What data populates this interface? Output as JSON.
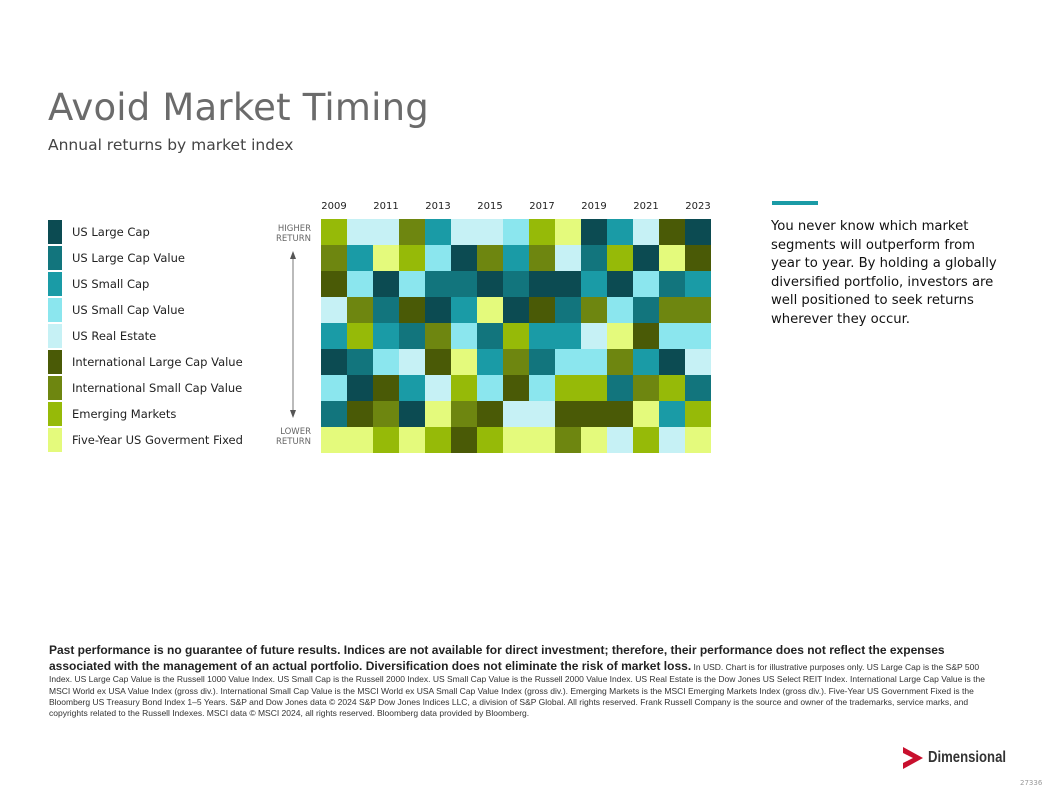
{
  "title": "Avoid Market Timing",
  "subtitle": "Annual returns by market index",
  "callout": "You never know which market segments will outperform from year to year. By holding a globally diversified portfolio, investors are well positioned to seek returns wherever they occur.",
  "higher_label": "HIGHER RETURN",
  "lower_label": "LOWER RETURN",
  "disclaimer_bold": "Past performance is no guarantee of future results. Indices are not available for direct investment; therefore, their performance does not reflect the expenses associated with the management of an actual portfolio. Diversification does not eliminate the risk of market loss.",
  "disclaimer_text": "In USD. Chart is for illustrative purposes only. US Large Cap is the S&P 500 Index. US Large Cap Value is the Russell 1000 Value Index. US Small Cap is the Russell 2000 Index. US Small Cap Value is the Russell 2000 Value Index. US Real Estate is the Dow Jones US Select REIT Index. International Large Cap Value is the MSCI World ex USA Value Index (gross div.). International Small Cap Value is the MSCI World ex USA Small Cap Value Index (gross div.). Emerging Markets is the MSCI Emerging Markets Index (gross div.). Five-Year US Government Fixed is the Bloomberg US Treasury Bond Index 1–5 Years. S&P and Dow Jones data © 2024 S&P Dow Jones Indices LLC, a division of S&P Global. All rights reserved. Frank Russell Company is the source and owner of the trademarks, service marks, and copyrights related to the Russell Indexes. MSCI data © MSCI 2024, all rights reserved. Bloomberg data provided by Bloomberg.",
  "logo_text": "Dimensional",
  "code": "27336",
  "colors": {
    "accent": "#1a9ba6",
    "logo_red": "#c8102e"
  },
  "chart_data": {
    "type": "heatmap",
    "description_axis": "rows ranked from higher return (top) to lower return (bottom)",
    "years": [
      "2009",
      "2010",
      "2011",
      "2012",
      "2013",
      "2014",
      "2015",
      "2016",
      "2017",
      "2018",
      "2019",
      "2020",
      "2021",
      "2022",
      "2023"
    ],
    "year_labels_shown": [
      "2009",
      "2011",
      "2013",
      "2015",
      "2017",
      "2019",
      "2021",
      "2023"
    ],
    "categories": [
      {
        "name": "US Large Cap",
        "color": "#0c4b52"
      },
      {
        "name": "US Large Cap Value",
        "color": "#12757d"
      },
      {
        "name": "US Small Cap",
        "color": "#1a9ba6"
      },
      {
        "name": "US Small Cap Value",
        "color": "#8be6ee"
      },
      {
        "name": "US Real Estate",
        "color": "#c6f1f5"
      },
      {
        "name": "International Large Cap Value",
        "color": "#4a5a06"
      },
      {
        "name": "International Small Cap Value",
        "color": "#6e8610"
      },
      {
        "name": "Emerging Markets",
        "color": "#96ba08"
      },
      {
        "name": "Five-Year US Goverment Fixed",
        "color": "#e4fa7c"
      }
    ],
    "rankings": [
      [
        7,
        4,
        4,
        6,
        2,
        4,
        4,
        3,
        7,
        8,
        0,
        2,
        4,
        5,
        0
      ],
      [
        6,
        2,
        8,
        7,
        3,
        0,
        6,
        2,
        6,
        4,
        1,
        7,
        0,
        8,
        5
      ],
      [
        5,
        3,
        0,
        3,
        1,
        1,
        0,
        1,
        0,
        0,
        2,
        0,
        3,
        1,
        2
      ],
      [
        4,
        6,
        1,
        5,
        0,
        2,
        8,
        0,
        5,
        1,
        6,
        3,
        1,
        6,
        6
      ],
      [
        2,
        7,
        2,
        1,
        6,
        3,
        1,
        7,
        2,
        2,
        4,
        8,
        5,
        3,
        3
      ],
      [
        0,
        1,
        3,
        4,
        5,
        8,
        2,
        6,
        1,
        3,
        3,
        6,
        2,
        0,
        4
      ],
      [
        3,
        0,
        5,
        2,
        4,
        7,
        3,
        5,
        3,
        7,
        7,
        1,
        6,
        7,
        1
      ],
      [
        1,
        5,
        6,
        0,
        8,
        6,
        5,
        4,
        4,
        5,
        5,
        5,
        8,
        2,
        7
      ],
      [
        8,
        8,
        7,
        8,
        7,
        5,
        7,
        8,
        8,
        6,
        8,
        4,
        7,
        4,
        8
      ]
    ]
  }
}
